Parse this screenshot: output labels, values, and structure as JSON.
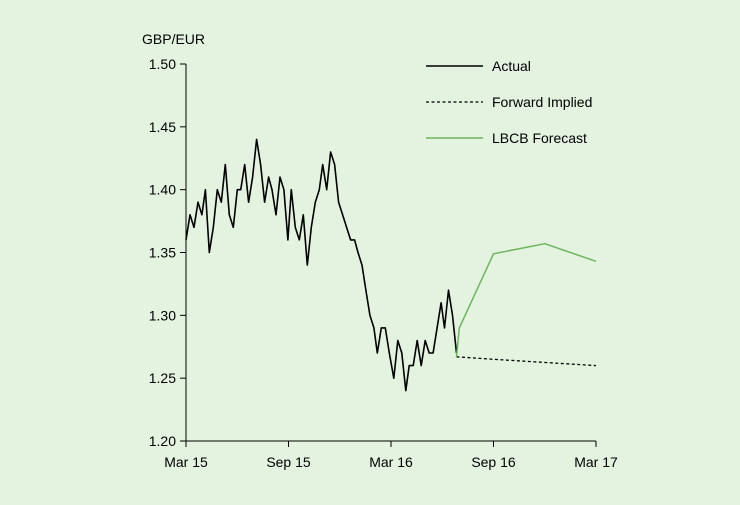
{
  "chart_data": {
    "type": "line",
    "ylabel": "GBP/EUR",
    "ylim": [
      1.2,
      1.5
    ],
    "yticks": [
      "1.20",
      "1.25",
      "1.30",
      "1.35",
      "1.40",
      "1.45",
      "1.50"
    ],
    "xlim": [
      "2015-03",
      "2017-03"
    ],
    "xticks": [
      {
        "label": "Mar 15",
        "date": "2015-03"
      },
      {
        "label": "Sep 15",
        "date": "2015-09"
      },
      {
        "label": "Mar 16",
        "date": "2016-03"
      },
      {
        "label": "Sep 16",
        "date": "2016-09"
      },
      {
        "label": "Mar 17",
        "date": "2017-03"
      }
    ],
    "grid": false,
    "legend_position": "top-right",
    "series": [
      {
        "name": "Actual",
        "color": "#000000",
        "style": "solid",
        "x": [
          "2015-03-01",
          "2015-03-08",
          "2015-03-15",
          "2015-03-22",
          "2015-03-29",
          "2015-04-05",
          "2015-04-12",
          "2015-04-19",
          "2015-04-26",
          "2015-05-03",
          "2015-05-10",
          "2015-05-17",
          "2015-05-24",
          "2015-05-31",
          "2015-06-07",
          "2015-06-14",
          "2015-06-21",
          "2015-06-28",
          "2015-07-05",
          "2015-07-12",
          "2015-07-19",
          "2015-07-26",
          "2015-08-02",
          "2015-08-09",
          "2015-08-16",
          "2015-08-23",
          "2015-08-30",
          "2015-09-06",
          "2015-09-13",
          "2015-09-20",
          "2015-09-27",
          "2015-10-04",
          "2015-10-11",
          "2015-10-18",
          "2015-10-25",
          "2015-11-01",
          "2015-11-08",
          "2015-11-15",
          "2015-11-22",
          "2015-11-29",
          "2015-12-06",
          "2015-12-13",
          "2015-12-20",
          "2015-12-27",
          "2016-01-03",
          "2016-01-10",
          "2016-01-17",
          "2016-01-24",
          "2016-01-31",
          "2016-02-07",
          "2016-02-14",
          "2016-02-21",
          "2016-02-28",
          "2016-03-06",
          "2016-03-13",
          "2016-03-20",
          "2016-03-27",
          "2016-04-03",
          "2016-04-10",
          "2016-04-17",
          "2016-04-24",
          "2016-05-01",
          "2016-05-08",
          "2016-05-15",
          "2016-05-22",
          "2016-05-29",
          "2016-06-05",
          "2016-06-12",
          "2016-06-19",
          "2016-06-26"
        ],
        "values": [
          1.36,
          1.38,
          1.37,
          1.39,
          1.38,
          1.4,
          1.35,
          1.37,
          1.4,
          1.39,
          1.42,
          1.38,
          1.37,
          1.4,
          1.4,
          1.42,
          1.39,
          1.41,
          1.44,
          1.42,
          1.39,
          1.41,
          1.4,
          1.38,
          1.41,
          1.4,
          1.36,
          1.4,
          1.37,
          1.36,
          1.38,
          1.34,
          1.37,
          1.39,
          1.4,
          1.42,
          1.4,
          1.43,
          1.42,
          1.39,
          1.38,
          1.37,
          1.36,
          1.36,
          1.35,
          1.34,
          1.32,
          1.3,
          1.29,
          1.27,
          1.29,
          1.29,
          1.27,
          1.25,
          1.28,
          1.27,
          1.24,
          1.26,
          1.26,
          1.28,
          1.26,
          1.28,
          1.27,
          1.27,
          1.29,
          1.31,
          1.29,
          1.32,
          1.3,
          1.27
        ]
      },
      {
        "name": "Forward Implied",
        "color": "#000000",
        "style": "dashed",
        "x": [
          "2016-06-26",
          "2016-09",
          "2017-03"
        ],
        "values": [
          1.267,
          1.265,
          1.26
        ]
      },
      {
        "name": "LBCB Forecast",
        "color": "#6db55d",
        "style": "solid",
        "x": [
          "2016-06-26",
          "2016-07",
          "2016-09",
          "2016-12",
          "2017-03"
        ],
        "values": [
          1.267,
          1.29,
          1.349,
          1.357,
          1.343
        ]
      }
    ]
  }
}
